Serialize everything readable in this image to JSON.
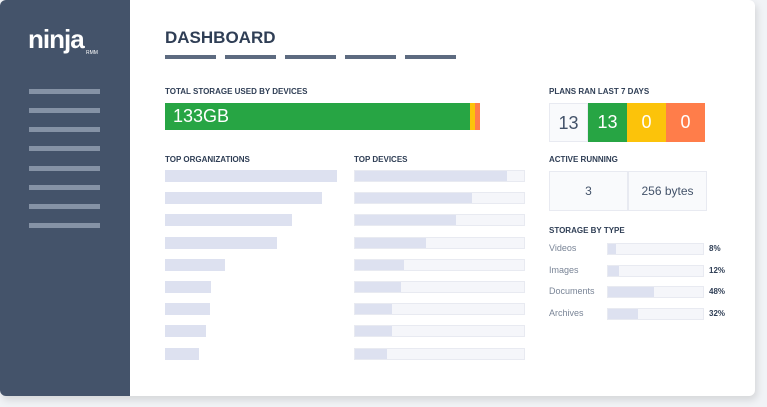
{
  "logo": {
    "text": "ninja",
    "sub": "RMM"
  },
  "title": "DASHBOARD",
  "storage": {
    "label": "TOTAL STORAGE USED BY DEVICES",
    "value": "133GB",
    "colors": {
      "used": "#27a544",
      "warn": "#fcc30a",
      "alert": "#ff7d4a"
    }
  },
  "top_orgs": {
    "label": "TOP ORGANIZATIONS",
    "levels": [
      100,
      91,
      74,
      65,
      35,
      27,
      26,
      24,
      20
    ]
  },
  "top_devices": {
    "label": "TOP DEVICES",
    "levels": [
      90,
      69,
      60,
      42,
      29,
      27,
      22,
      22,
      19
    ]
  },
  "plans": {
    "label": "PLANS RAN LAST 7 DAYS",
    "values": [
      "13",
      "13",
      "0",
      "0"
    ],
    "colors": [
      "#f9fafc",
      "#27a544",
      "#fcc30a",
      "#ff7d4a"
    ]
  },
  "active": {
    "label": "ACTIVE RUNNING",
    "count": "3",
    "size": "256 bytes"
  },
  "storage_by_type": {
    "label": "STORAGE BY TYPE",
    "items": [
      {
        "name": "Videos",
        "pct": "8%",
        "value": 8
      },
      {
        "name": "Images",
        "pct": "12%",
        "value": 12
      },
      {
        "name": "Documents",
        "pct": "48%",
        "value": 48
      },
      {
        "name": "Archives",
        "pct": "32%",
        "value": 32
      }
    ]
  }
}
